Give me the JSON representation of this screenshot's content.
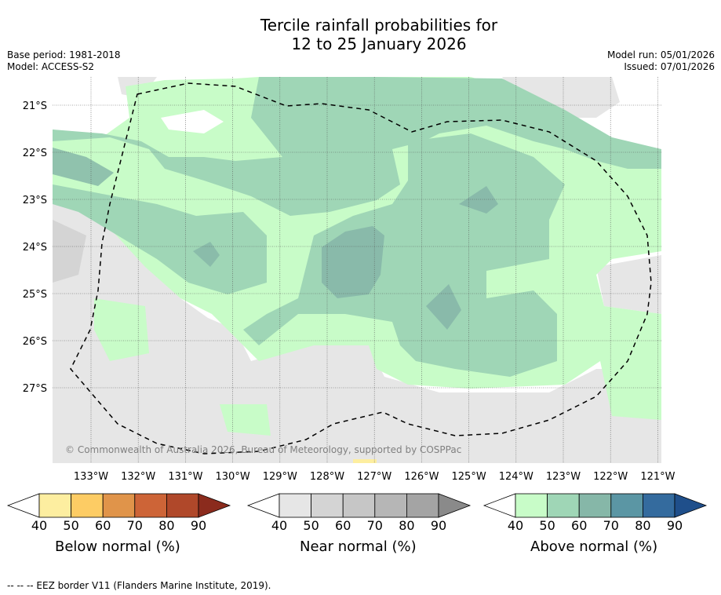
{
  "title_line1": "Tercile rainfall probabilities for",
  "title_line2": "12 to 25 January 2026",
  "meta_left": [
    "Base period: 1981-2018",
    "Model: ACCESS-S2"
  ],
  "meta_right": [
    "Model run: 05/01/2026",
    "Issued: 07/01/2026"
  ],
  "copyright": "© Commonwealth of Australia 2026, Bureau of Meteorology, supported by COSPPac",
  "lat_labels": [
    "21°S",
    "22°S",
    "23°S",
    "24°S",
    "25°S",
    "26°S",
    "27°S"
  ],
  "lon_labels": [
    "133°W",
    "132°W",
    "131°W",
    "130°W",
    "129°W",
    "128°W",
    "127°W",
    "126°W",
    "125°W",
    "124°W",
    "123°W",
    "122°W",
    "121°W"
  ],
  "colorbars": [
    {
      "label": "Below normal (%)",
      "ticks": [
        "40",
        "50",
        "60",
        "70",
        "80",
        "90"
      ],
      "colors": [
        "#ffffff",
        "#fdeea0",
        "#fdcc64",
        "#e0944a",
        "#cd6437",
        "#b0482a",
        "#8b2b1d"
      ]
    },
    {
      "label": "Near normal (%)",
      "ticks": [
        "40",
        "50",
        "60",
        "70",
        "80",
        "90"
      ],
      "colors": [
        "#ffffff",
        "#e6e6e6",
        "#d4d4d4",
        "#c6c6c6",
        "#b6b6b6",
        "#a4a4a4",
        "#8a8a8a"
      ]
    },
    {
      "label": "Above normal (%)",
      "ticks": [
        "40",
        "50",
        "60",
        "70",
        "80",
        "90"
      ],
      "colors": [
        "#ffffff",
        "#c8fcc8",
        "#9fd6b6",
        "#86b7a8",
        "#5b96a4",
        "#346b9e",
        "#1f4f8b"
      ]
    }
  ],
  "legend_note": "--  --  -- EEZ border V11 (Flanders Marine Institute, 2019)."
}
